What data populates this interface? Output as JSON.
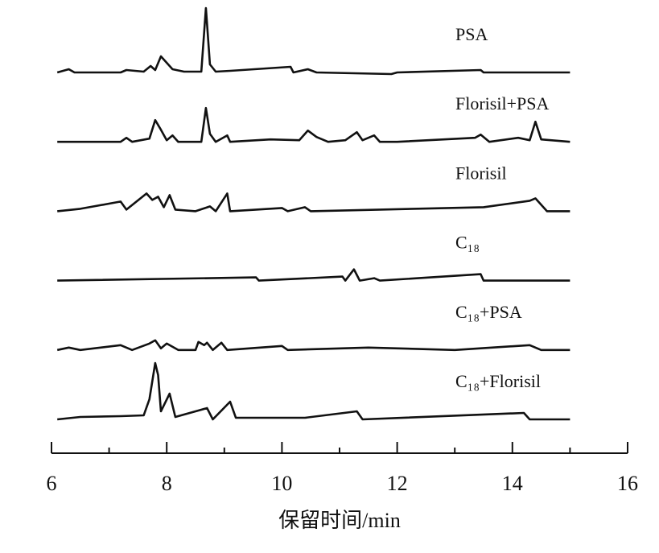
{
  "chart_data": {
    "type": "line",
    "xlabel": "保留时间/min",
    "xlim": [
      6,
      16
    ],
    "xticks": [
      6,
      8,
      10,
      12,
      14,
      16
    ],
    "xminorticks": [
      7,
      9,
      11,
      13,
      15
    ],
    "series": [
      {
        "name": "PSA",
        "color": "#111111",
        "x": [
          6.1,
          6.3,
          6.4,
          7.2,
          7.3,
          7.6,
          7.72,
          7.8,
          7.9,
          8.0,
          8.1,
          8.3,
          8.6,
          8.68,
          8.75,
          8.85,
          9.1,
          10.15,
          10.2,
          10.45,
          10.6,
          11.9,
          12.0,
          13.45,
          13.5,
          15.0
        ],
        "values": [
          0,
          4,
          0,
          0,
          3,
          1,
          8,
          3,
          20,
          12,
          4,
          1,
          1,
          80,
          10,
          1,
          2,
          7,
          0,
          4,
          0,
          -2,
          0,
          3,
          0,
          0
        ]
      },
      {
        "name": "Florisil+PSA",
        "color": "#111111",
        "x": [
          6.1,
          7.2,
          7.3,
          7.4,
          7.7,
          7.8,
          7.9,
          8.0,
          8.1,
          8.2,
          8.6,
          8.68,
          8.75,
          8.85,
          9.05,
          9.1,
          9.8,
          10.3,
          10.45,
          10.6,
          10.8,
          11.1,
          11.3,
          11.4,
          11.6,
          11.7,
          12.0,
          13.35,
          13.45,
          13.6,
          14.1,
          14.3,
          14.4,
          14.5,
          15.0
        ],
        "values": [
          0,
          0,
          5,
          0,
          4,
          27,
          15,
          2,
          8,
          0,
          0,
          42,
          10,
          0,
          8,
          0,
          3,
          2,
          14,
          6,
          0,
          2,
          12,
          2,
          8,
          0,
          0,
          5,
          9,
          0,
          5,
          2,
          25,
          3,
          0
        ]
      },
      {
        "name": "Florisil",
        "color": "#111111",
        "x": [
          6.1,
          6.5,
          7.2,
          7.3,
          7.65,
          7.75,
          7.85,
          7.95,
          8.05,
          8.15,
          8.5,
          8.75,
          8.85,
          9.05,
          9.1,
          10.0,
          10.1,
          10.4,
          10.5,
          13.5,
          14.3,
          14.4,
          14.6,
          15.0
        ],
        "values": [
          0,
          3,
          12,
          2,
          22,
          14,
          18,
          5,
          20,
          2,
          0,
          6,
          0,
          22,
          0,
          4,
          0,
          5,
          0,
          5,
          13,
          16,
          0,
          0
        ]
      },
      {
        "name": "C₁₈",
        "color": "#111111",
        "x": [
          6.1,
          9.55,
          9.6,
          11.05,
          11.1,
          11.25,
          11.35,
          11.6,
          11.7,
          13.45,
          13.5,
          15.0
        ],
        "values": [
          0,
          4,
          0,
          5,
          0,
          14,
          0,
          3,
          0,
          8,
          0,
          0
        ]
      },
      {
        "name": "C₁₈+PSA",
        "color": "#111111",
        "x": [
          6.1,
          6.3,
          6.5,
          7.2,
          7.4,
          7.7,
          7.8,
          7.9,
          8.0,
          8.2,
          8.5,
          8.55,
          8.65,
          8.7,
          8.8,
          8.95,
          9.05,
          10.0,
          10.1,
          11.5,
          13.0,
          14.3,
          14.5,
          15.0
        ],
        "values": [
          0,
          3,
          0,
          6,
          0,
          8,
          12,
          2,
          8,
          0,
          0,
          10,
          6,
          9,
          0,
          9,
          0,
          5,
          0,
          3,
          0,
          6,
          0,
          0
        ]
      },
      {
        "name": "C₁₈+Florisil",
        "color": "#111111",
        "x": [
          6.1,
          6.5,
          7.2,
          7.6,
          7.7,
          7.8,
          7.85,
          7.9,
          8.05,
          8.15,
          8.7,
          8.8,
          9.1,
          9.2,
          10.4,
          11.3,
          11.4,
          14.2,
          14.3,
          15.0
        ],
        "values": [
          0,
          3,
          4,
          5,
          25,
          70,
          55,
          10,
          32,
          3,
          14,
          0,
          22,
          2,
          2,
          10,
          0,
          8,
          0,
          0
        ]
      }
    ]
  }
}
